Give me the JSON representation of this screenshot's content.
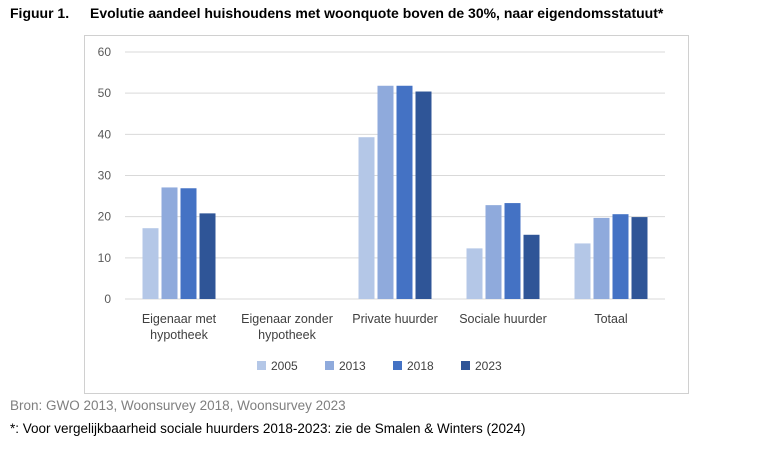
{
  "figure": {
    "number": "Figuur 1.",
    "title": "Evolutie aandeel huishoudens met woonquote boven de 30%, naar eigendomsstatuut*",
    "source": "Bron:  GWO 2013, Woonsurvey 2018, Woonsurvey 2023",
    "note": "*: Voor vergelijkbaarheid sociale huurders 2018-2023: zie de Smalen & Winters (2024)"
  },
  "chart_data": {
    "type": "bar",
    "categories": [
      [
        "Eigenaar met",
        "hypotheek"
      ],
      [
        "Eigenaar zonder",
        "hypotheek"
      ],
      [
        "Private huurder"
      ],
      [
        "Sociale huurder"
      ],
      [
        "Totaal"
      ]
    ],
    "series": [
      {
        "name": "2005",
        "color": "#b4c7e7",
        "values": [
          17.2,
          null,
          39.3,
          12.3,
          13.5
        ]
      },
      {
        "name": "2013",
        "color": "#8faadc",
        "values": [
          27.1,
          null,
          51.8,
          22.8,
          19.7
        ]
      },
      {
        "name": "2018",
        "color": "#4472c4",
        "values": [
          26.9,
          null,
          51.8,
          23.3,
          20.6
        ]
      },
      {
        "name": "2023",
        "color": "#2f5597",
        "values": [
          20.8,
          null,
          50.4,
          15.6,
          19.9
        ]
      }
    ],
    "ylim": [
      0,
      60
    ],
    "yticks": [
      0,
      10,
      20,
      30,
      40,
      50,
      60
    ],
    "grid": true,
    "legend": "bottom"
  }
}
